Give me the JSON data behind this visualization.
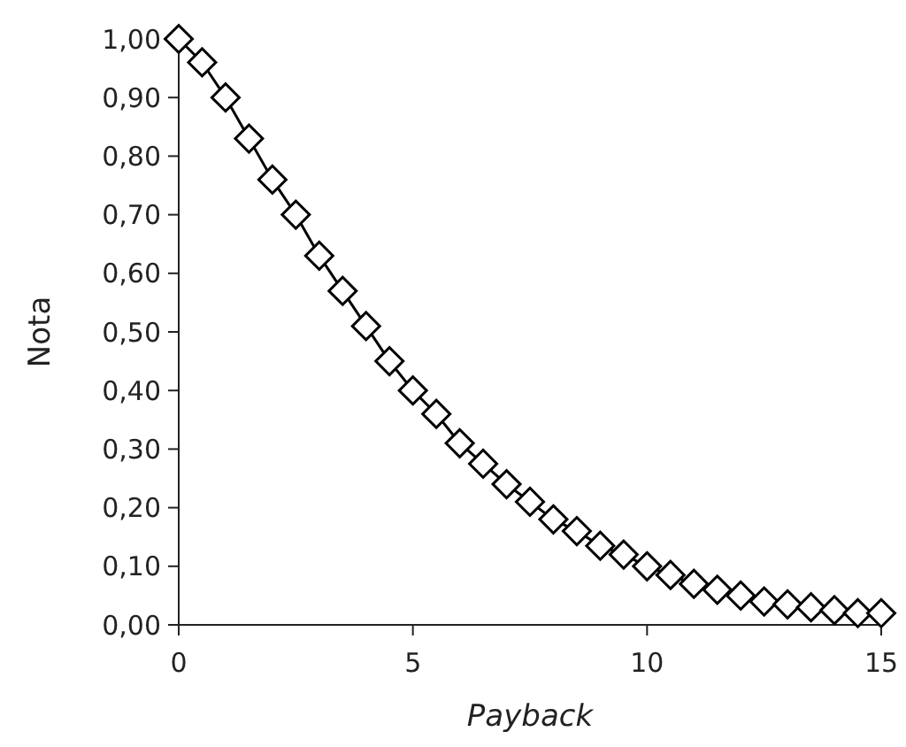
{
  "chart_data": {
    "type": "line",
    "xlabel": "Payback",
    "ylabel": "Nota",
    "xlim": [
      0,
      15
    ],
    "xticks": [
      0,
      5,
      10,
      15
    ],
    "ylim": [
      0,
      1
    ],
    "yticks": [
      {
        "value": 0,
        "label": "0,00"
      },
      {
        "value": 0.1,
        "label": "0,10"
      },
      {
        "value": 0.2,
        "label": "0,20"
      },
      {
        "value": 0.3,
        "label": "0,30"
      },
      {
        "value": 0.4,
        "label": "0,40"
      },
      {
        "value": 0.5,
        "label": "0,50"
      },
      {
        "value": 0.6,
        "label": "0,60"
      },
      {
        "value": 0.7,
        "label": "0,70"
      },
      {
        "value": 0.8,
        "label": "0,80"
      },
      {
        "value": 0.9,
        "label": "0,90"
      },
      {
        "value": 1,
        "label": "1,00"
      }
    ],
    "x": [
      0,
      0.5,
      1,
      1.5,
      2,
      2.5,
      3,
      3.5,
      4,
      4.5,
      5,
      5.5,
      6,
      6.5,
      7,
      7.5,
      8,
      8.5,
      9,
      9.5,
      10,
      10.5,
      11,
      11.5,
      12,
      12.5,
      13,
      13.5,
      14,
      14.5,
      15
    ],
    "series": [
      {
        "color": "#000000",
        "values": [
          1,
          0.96,
          0.9,
          0.83,
          0.76,
          0.7,
          0.63,
          0.57,
          0.51,
          0.45,
          0.4,
          0.36,
          0.31,
          0.275,
          0.24,
          0.21,
          0.18,
          0.16,
          0.135,
          0.12,
          0.1,
          0.085,
          0.07,
          0.06,
          0.05,
          0.04,
          0.035,
          0.03,
          0.025,
          0.02,
          0.02
        ]
      }
    ],
    "marker": "diamond",
    "line_style": "solid",
    "grid": false
  }
}
